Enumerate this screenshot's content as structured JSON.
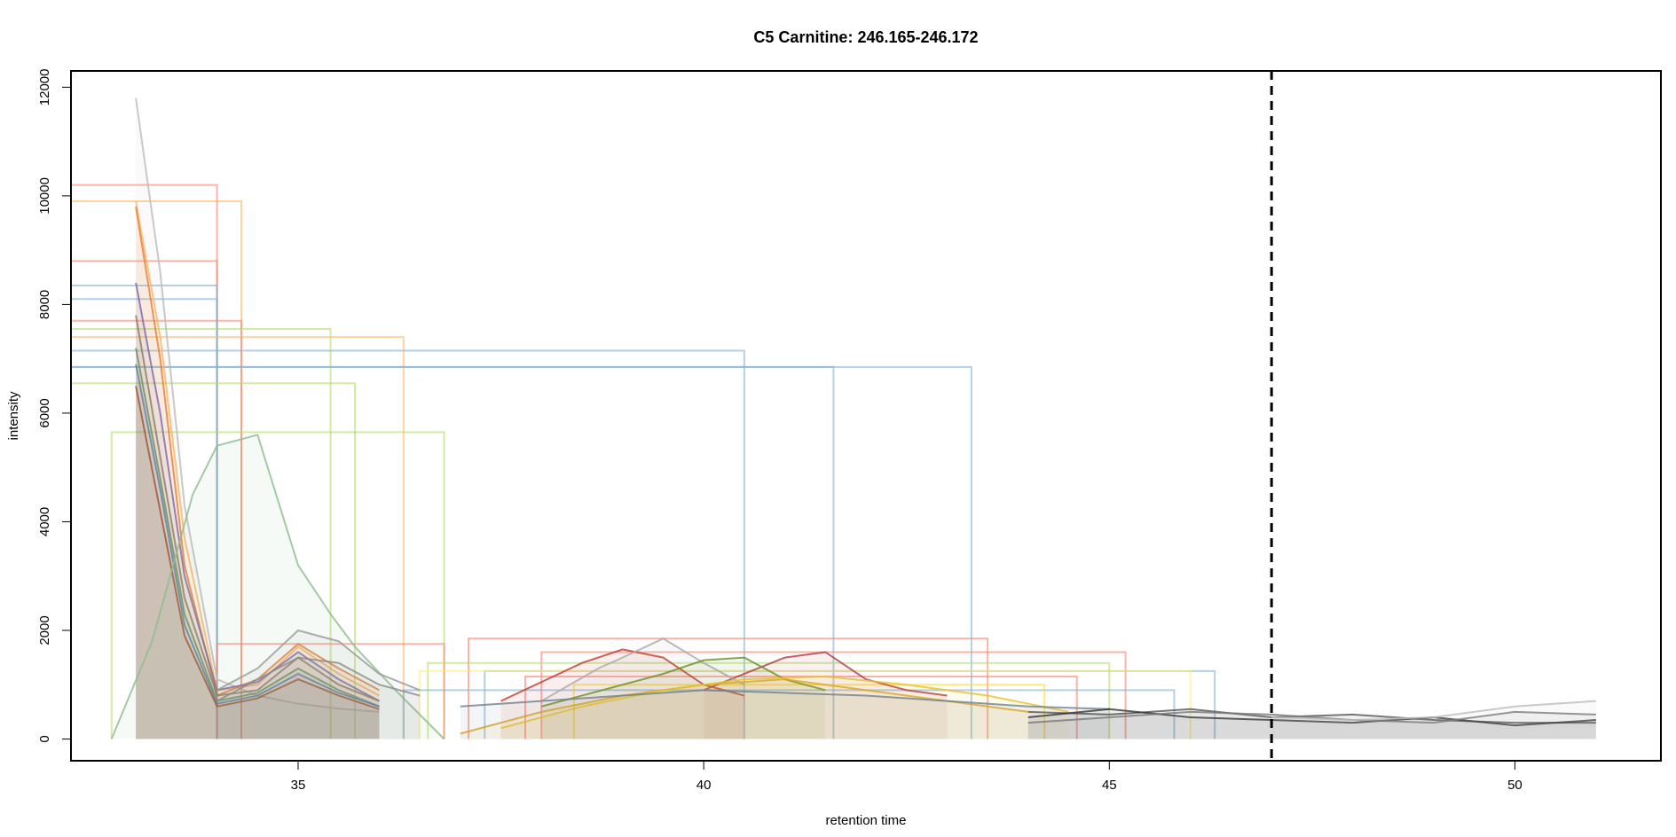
{
  "chart_data": {
    "type": "line",
    "title": "C5 Carnitine: 246.165-246.172",
    "xlabel": "retention time",
    "ylabel": "intensity",
    "xlim": [
      32.2,
      51.8
    ],
    "ylim": [
      -400,
      12300
    ],
    "x_ticks": [
      "35",
      "40",
      "45",
      "50"
    ],
    "y_ticks": [
      "0",
      "2000",
      "4000",
      "6000",
      "8000",
      "10000",
      "12000"
    ],
    "grid": false,
    "legend": "none",
    "reference_lines": [
      {
        "type": "vertical",
        "x": 47.0,
        "style": "dashed",
        "color": "#000000"
      }
    ],
    "palette": [
      "#fb8072",
      "#fdb462",
      "#80b1d3",
      "#8dd3c7",
      "#b3de69",
      "#ffed6f",
      "#bc80bd",
      "#e41a1c",
      "#ff7f00",
      "#377eb8",
      "#4daf4a",
      "#ffd92f",
      "#984ea3",
      "#66a61e"
    ],
    "peak_windows": [
      {
        "x0": 32.2,
        "x1": 34.0,
        "y": 10200,
        "color": "#fb8072"
      },
      {
        "x0": 32.2,
        "x1": 34.3,
        "y": 9900,
        "color": "#fdb462"
      },
      {
        "x0": 32.2,
        "x1": 34.0,
        "y": 8800,
        "color": "#fb8072"
      },
      {
        "x0": 32.2,
        "x1": 34.0,
        "y": 8350,
        "color": "#80b1d3"
      },
      {
        "x0": 32.2,
        "x1": 34.0,
        "y": 8100,
        "color": "#80b1d3"
      },
      {
        "x0": 32.2,
        "x1": 34.3,
        "y": 7700,
        "color": "#fb8072"
      },
      {
        "x0": 32.2,
        "x1": 35.4,
        "y": 7550,
        "color": "#b3de69"
      },
      {
        "x0": 32.2,
        "x1": 36.3,
        "y": 7400,
        "color": "#fdb462"
      },
      {
        "x0": 32.2,
        "x1": 40.5,
        "y": 7150,
        "color": "#80b1d3"
      },
      {
        "x0": 32.2,
        "x1": 41.6,
        "y": 6850,
        "color": "#80b1d3"
      },
      {
        "x0": 32.2,
        "x1": 43.3,
        "y": 6850,
        "color": "#80b1d3"
      },
      {
        "x0": 32.2,
        "x1": 35.7,
        "y": 6550,
        "color": "#b3de69"
      },
      {
        "x0": 32.7,
        "x1": 36.8,
        "y": 5650,
        "color": "#b3de69"
      },
      {
        "x0": 34.0,
        "x1": 36.8,
        "y": 1750,
        "color": "#fb8072"
      },
      {
        "x0": 37.1,
        "x1": 43.5,
        "y": 1850,
        "color": "#fb8072"
      },
      {
        "x0": 38.0,
        "x1": 45.2,
        "y": 1600,
        "color": "#fb8072"
      },
      {
        "x0": 36.6,
        "x1": 45.0,
        "y": 1400,
        "color": "#b3de69"
      },
      {
        "x0": 37.3,
        "x1": 46.3,
        "y": 1250,
        "color": "#80b1d3"
      },
      {
        "x0": 36.5,
        "x1": 46.0,
        "y": 1250,
        "color": "#ffed6f"
      },
      {
        "x0": 37.8,
        "x1": 44.6,
        "y": 1150,
        "color": "#fb8072"
      },
      {
        "x0": 36.3,
        "x1": 45.8,
        "y": 900,
        "color": "#80b1d3"
      },
      {
        "x0": 38.4,
        "x1": 44.2,
        "y": 1000,
        "color": "#ffd92f"
      }
    ],
    "series": [
      {
        "color": "#bbbbbb",
        "x": [
          33.0,
          33.3,
          33.6,
          34.0,
          34.5,
          35.0,
          35.5,
          36.0
        ],
        "y": [
          11800,
          8600,
          4300,
          1100,
          800,
          650,
          560,
          500
        ]
      },
      {
        "color": "#fdb462",
        "x": [
          33.0,
          33.3,
          33.6,
          34.0,
          34.5,
          35.0,
          35.5,
          36.0
        ],
        "y": [
          9900,
          7400,
          3700,
          900,
          1000,
          1700,
          1200,
          800
        ]
      },
      {
        "color": "#e87b2e",
        "x": [
          33.0,
          33.3,
          33.6,
          34.0,
          34.5,
          35.0,
          35.5,
          36.0
        ],
        "y": [
          9800,
          7000,
          3200,
          800,
          1100,
          1750,
          1300,
          900
        ]
      },
      {
        "color": "#7a68a6",
        "x": [
          33.0,
          33.3,
          33.6,
          34.0,
          34.5,
          35.0,
          35.5,
          36.0
        ],
        "y": [
          8400,
          6000,
          3000,
          900,
          1050,
          1600,
          1100,
          700
        ]
      },
      {
        "color": "#8c7a62",
        "x": [
          33.0,
          33.3,
          33.6,
          34.0,
          34.5,
          35.0,
          35.5,
          36.0
        ],
        "y": [
          7800,
          5200,
          2600,
          800,
          900,
          1500,
          1000,
          700
        ]
      },
      {
        "color": "#6b8f5e",
        "x": [
          33.0,
          33.3,
          33.6,
          34.0,
          34.5,
          35.0,
          35.5,
          36.0
        ],
        "y": [
          7200,
          4800,
          2300,
          700,
          850,
          1300,
          900,
          600
        ]
      },
      {
        "color": "#5c7fa3",
        "x": [
          33.0,
          33.3,
          33.6,
          34.0,
          34.5,
          35.0,
          35.5,
          36.0
        ],
        "y": [
          6900,
          4600,
          2100,
          650,
          800,
          1200,
          850,
          600
        ]
      },
      {
        "color": "#a0522d",
        "x": [
          33.0,
          33.3,
          33.6,
          34.0,
          34.5,
          35.0,
          35.5,
          36.0
        ],
        "y": [
          6500,
          4200,
          1900,
          600,
          750,
          1100,
          800,
          550
        ]
      },
      {
        "color": "#8fbc8f",
        "x": [
          32.7,
          33.2,
          33.7,
          34.0,
          34.5,
          35.0,
          35.4,
          35.7,
          36.2,
          36.8
        ],
        "y": [
          0,
          1800,
          4500,
          5400,
          5600,
          3200,
          2300,
          1700,
          900,
          0
        ]
      },
      {
        "color": "#999999",
        "x": [
          34.0,
          34.5,
          35.0,
          35.5,
          36.0,
          36.5
        ],
        "y": [
          900,
          1300,
          2000,
          1800,
          1200,
          900
        ]
      },
      {
        "color": "#8b8b8b",
        "x": [
          34.0,
          34.5,
          35.0,
          35.5,
          36.0,
          36.5
        ],
        "y": [
          700,
          1100,
          1500,
          1400,
          1000,
          800
        ]
      },
      {
        "color": "#c0392b",
        "x": [
          37.5,
          38.5,
          39.0,
          39.5,
          40.0,
          40.5
        ],
        "y": [
          700,
          1400,
          1650,
          1500,
          1000,
          800
        ]
      },
      {
        "color": "#b03a48",
        "x": [
          40.0,
          40.5,
          41.0,
          41.5,
          42.0,
          42.5,
          43.0
        ],
        "y": [
          900,
          1200,
          1500,
          1600,
          1100,
          900,
          800
        ]
      },
      {
        "color": "#a9a9a9",
        "x": [
          38.0,
          38.7,
          39.0,
          39.5,
          40.0,
          40.5
        ],
        "y": [
          700,
          1300,
          1500,
          1850,
          1400,
          1000
        ]
      },
      {
        "color": "#6b8e23",
        "x": [
          38.0,
          39.0,
          39.5,
          40.0,
          40.5,
          41.0,
          41.5
        ],
        "y": [
          600,
          1000,
          1200,
          1450,
          1500,
          1100,
          900
        ]
      },
      {
        "color": "#daa520",
        "x": [
          37.0,
          38.0,
          39.0,
          40.0,
          41.0,
          42.0,
          43.0,
          44.0
        ],
        "y": [
          100,
          500,
          800,
          1000,
          1100,
          900,
          700,
          500
        ]
      },
      {
        "color": "#e6c229",
        "x": [
          37.5,
          38.5,
          39.5,
          40.5,
          41.5,
          42.5,
          43.5,
          44.5
        ],
        "y": [
          200,
          600,
          900,
          1100,
          1150,
          1000,
          800,
          500
        ]
      },
      {
        "color": "#708090",
        "x": [
          37.0,
          38.0,
          39.0,
          40.0,
          41.0,
          42.0,
          43.0,
          44.0,
          45.0
        ],
        "y": [
          600,
          700,
          800,
          900,
          850,
          800,
          700,
          600,
          550
        ]
      },
      {
        "color": "#555555",
        "x": [
          44.0,
          45.0,
          46.0,
          47.0,
          48.0,
          49.0,
          50.0,
          51.0
        ],
        "y": [
          500,
          450,
          550,
          400,
          450,
          350,
          300,
          300
        ]
      },
      {
        "color": "#333333",
        "x": [
          44.0,
          45.0,
          46.0,
          47.0,
          48.0,
          49.0,
          50.0,
          51.0
        ],
        "y": [
          400,
          550,
          400,
          350,
          300,
          400,
          250,
          350
        ]
      },
      {
        "color": "#777777",
        "x": [
          44.0,
          45.0,
          46.0,
          47.0,
          48.0,
          49.0,
          50.0,
          51.0
        ],
        "y": [
          300,
          400,
          500,
          450,
          350,
          300,
          500,
          450
        ]
      },
      {
        "color": "#bbbbbb",
        "x": [
          47.0,
          48.0,
          49.0,
          50.0,
          50.5,
          51.0
        ],
        "y": [
          400,
          350,
          400,
          600,
          650,
          700
        ]
      }
    ]
  }
}
